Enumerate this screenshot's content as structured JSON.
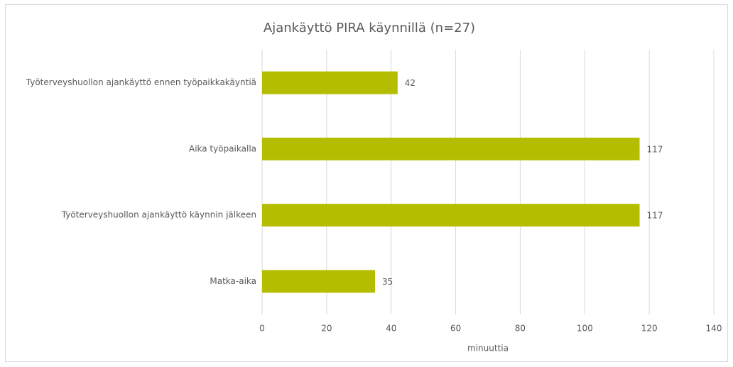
{
  "chart_data": {
    "type": "bar",
    "orientation": "horizontal",
    "title": "Ajankäyttö PIRA käynnillä (n=27)",
    "categories": [
      "Työterveyshuollon ajankäyttö ennen työpaikkakäyntiä",
      "Aika työpaikalla",
      "Työterveyshuollon ajankäyttö käynnin jälkeen",
      "Matka-aika"
    ],
    "values": [
      42,
      117,
      117,
      35
    ],
    "color": "#b5bd00",
    "xlabel": "minuuttia",
    "xlim": [
      0,
      140
    ],
    "xticks": [
      0,
      20,
      40,
      60,
      80,
      100,
      120,
      140
    ],
    "grid": true
  }
}
